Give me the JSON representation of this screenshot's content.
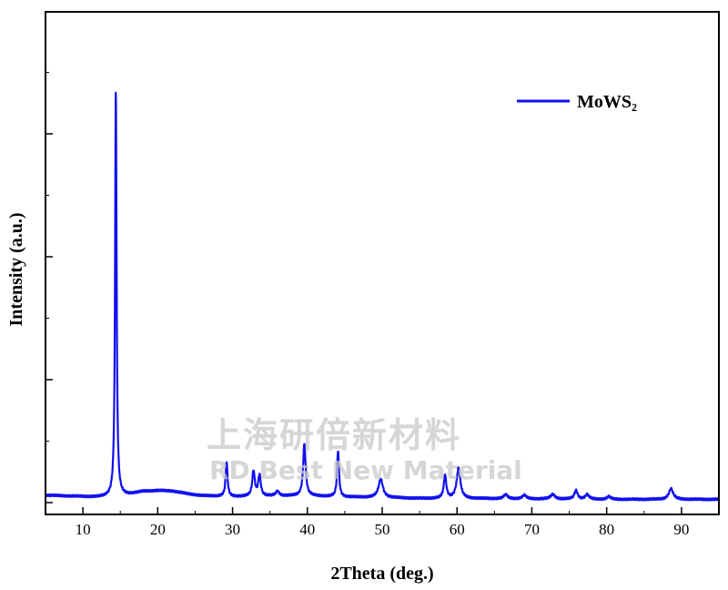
{
  "chart_data": {
    "type": "line",
    "title": "",
    "xlabel": "2Theta (deg.)",
    "ylabel": "Intensity (a.u.)",
    "xlim": [
      5,
      95
    ],
    "ylim": [
      0,
      100
    ],
    "x_ticks": [
      10,
      20,
      30,
      40,
      50,
      60,
      70,
      80,
      90
    ],
    "y_ticks_labeled": false,
    "grid": false,
    "legend_position": "top-right",
    "series": [
      {
        "name": "MoWS₂",
        "color": "#1010ee",
        "baseline": [
          [
            5,
            1.6
          ],
          [
            12,
            1.2
          ],
          [
            14,
            1.3
          ],
          [
            16,
            1.7
          ],
          [
            18,
            2.4
          ],
          [
            20,
            2.6
          ],
          [
            22,
            2.5
          ],
          [
            24,
            1.9
          ],
          [
            26,
            1.5
          ],
          [
            30,
            1.3
          ],
          [
            36,
            1.4
          ],
          [
            40,
            1.5
          ],
          [
            45,
            1.2
          ],
          [
            50,
            1.1
          ],
          [
            55,
            0.9
          ],
          [
            60,
            0.9
          ],
          [
            70,
            0.8
          ],
          [
            80,
            0.7
          ],
          [
            90,
            0.7
          ],
          [
            95,
            0.7
          ]
        ],
        "peaks": [
          {
            "x": 14.4,
            "y": 88.0,
            "w": 0.12
          },
          {
            "x": 29.2,
            "y": 7.5,
            "w": 0.15
          },
          {
            "x": 32.8,
            "y": 5.5,
            "w": 0.2
          },
          {
            "x": 33.6,
            "y": 4.5,
            "w": 0.2
          },
          {
            "x": 36.0,
            "y": 1.0,
            "w": 0.3
          },
          {
            "x": 39.6,
            "y": 11.2,
            "w": 0.2
          },
          {
            "x": 44.1,
            "y": 10.0,
            "w": 0.15
          },
          {
            "x": 49.8,
            "y": 4.0,
            "w": 0.35
          },
          {
            "x": 58.4,
            "y": 5.0,
            "w": 0.2
          },
          {
            "x": 60.2,
            "y": 6.5,
            "w": 0.3
          },
          {
            "x": 66.5,
            "y": 0.9,
            "w": 0.3
          },
          {
            "x": 69.0,
            "y": 0.8,
            "w": 0.3
          },
          {
            "x": 72.8,
            "y": 1.0,
            "w": 0.35
          },
          {
            "x": 75.9,
            "y": 1.9,
            "w": 0.25
          },
          {
            "x": 77.4,
            "y": 1.0,
            "w": 0.3
          },
          {
            "x": 80.3,
            "y": 0.6,
            "w": 0.3
          },
          {
            "x": 88.6,
            "y": 2.3,
            "w": 0.35
          }
        ]
      }
    ]
  },
  "watermark": {
    "line1": "上海研倍新材料",
    "line2": "RD Best New Material"
  }
}
